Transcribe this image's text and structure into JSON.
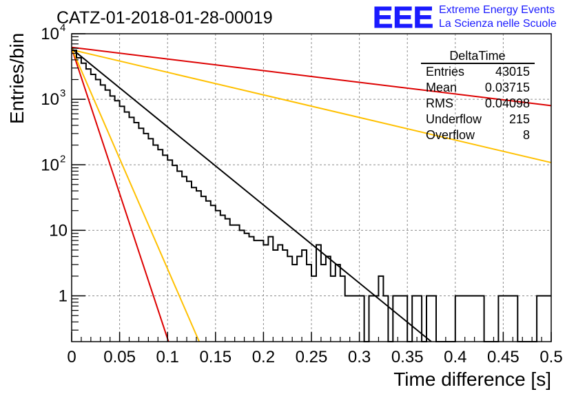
{
  "chart_data": {
    "type": "histogram",
    "title": "CATZ-01-2018-01-28-00019",
    "xlabel": "Time difference [s]",
    "ylabel": "Entries/bin",
    "xlim": [
      0,
      0.5
    ],
    "ylim": [
      0.2,
      10000
    ],
    "yscale": "log",
    "grid": true,
    "x_ticks": [
      "0",
      "0.05",
      "0.1",
      "0.15",
      "0.2",
      "0.25",
      "0.3",
      "0.35",
      "0.4",
      "0.45",
      "0.5"
    ],
    "y_ticks": [
      {
        "value": 1,
        "label": "1"
      },
      {
        "value": 10,
        "label": "10"
      },
      {
        "value": 100,
        "base": "10",
        "exp": "2"
      },
      {
        "value": 1000,
        "base": "10",
        "exp": "3"
      },
      {
        "value": 10000,
        "base": "10",
        "exp": "4"
      }
    ],
    "bin_width": 0.005,
    "histogram_counts": [
      5600,
      4300,
      3550,
      2900,
      2400,
      2000,
      1650,
      1380,
      1120,
      950,
      780,
      640,
      530,
      440,
      360,
      300,
      250,
      200,
      170,
      140,
      118,
      98,
      80,
      66,
      56,
      45,
      40,
      33,
      28,
      24,
      20,
      17,
      15,
      12,
      12,
      10,
      9,
      8,
      7,
      7,
      6,
      8,
      5,
      6,
      5,
      4,
      3,
      4,
      5,
      3,
      2,
      6,
      3,
      4,
      2,
      3,
      2,
      1,
      1,
      1,
      1,
      0.2,
      1,
      1,
      2,
      1,
      0.2,
      1,
      1,
      1,
      0.2,
      1,
      1,
      0.2,
      1,
      1,
      0.2,
      0.2,
      0.2,
      0.2,
      1,
      1,
      1,
      1,
      1,
      1,
      0.2,
      0.2,
      0.2,
      1,
      1,
      1,
      1,
      0.2,
      0.2,
      0.2,
      0.2,
      1,
      1,
      1
    ],
    "fit_lines": [
      {
        "color": "#000000",
        "y0": 5900,
        "y_at_x1": 0.2,
        "x1": 0.375
      },
      {
        "color": "#dd0000",
        "y0": 6000,
        "y_at_x1": 0.2,
        "x1": 0.101
      },
      {
        "color": "#ffc000",
        "y0": 6000,
        "y_at_x1": 0.2,
        "x1": 0.133
      },
      {
        "color": "#dd0000",
        "y0": 6200,
        "y_at_x1": 800,
        "x1": 0.5
      },
      {
        "color": "#ffc000",
        "y0": 5700,
        "y_at_x1": 108,
        "x1": 0.5
      }
    ],
    "stats": {
      "name": "DeltaTime",
      "rows": [
        {
          "label": "Entries",
          "value": "43015"
        },
        {
          "label": "Mean",
          "value": "0.03715"
        },
        {
          "label": "RMS",
          "value": "0.04098"
        },
        {
          "label": "Underflow",
          "value": "215"
        },
        {
          "label": "Overflow",
          "value": "8"
        }
      ]
    }
  },
  "logo": {
    "mark": "EEE",
    "line1": "Extreme Energy Events",
    "line2": "La Scienza nelle Scuole",
    "color": "#1a1aff"
  }
}
